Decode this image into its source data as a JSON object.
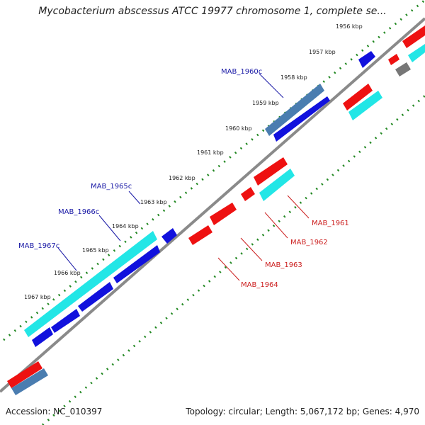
{
  "title": "Mycobacterium abscessus ATCC 19977 chromosome 1, complete se...",
  "accession_text": "Accession: NC_010397",
  "summary_text": "Topology: circular; Length: 5,067,172 bp; Genes: 4,970",
  "tick_labels": [
    "1956 kbp",
    "1957 kbp",
    "1958 kbp",
    "1959 kbp",
    "1960 kbp",
    "1961 kbp",
    "1962 kbp",
    "1963 kbp",
    "1964 kbp",
    "1965 kbp",
    "1966 kbp",
    "1967 kbp"
  ],
  "gene_labels_left": [
    "MAB_1960c",
    "MAB_1965c",
    "MAB_1966c",
    "MAB_1967c"
  ],
  "gene_labels_right": [
    "MAB_1961",
    "MAB_1962",
    "MAB_1963",
    "MAB_1964"
  ],
  "colors": {
    "forward_gene": "#ee1111",
    "reverse_gene": "#1111dd",
    "highlight_gene": "#22e6e6",
    "steel_gene": "#4a7db0",
    "gray_gene": "#777777",
    "backbone": "#8a8a8a",
    "tick_dots": "#228822",
    "left_label": "#1a1aa6",
    "right_label": "#cc2020"
  }
}
